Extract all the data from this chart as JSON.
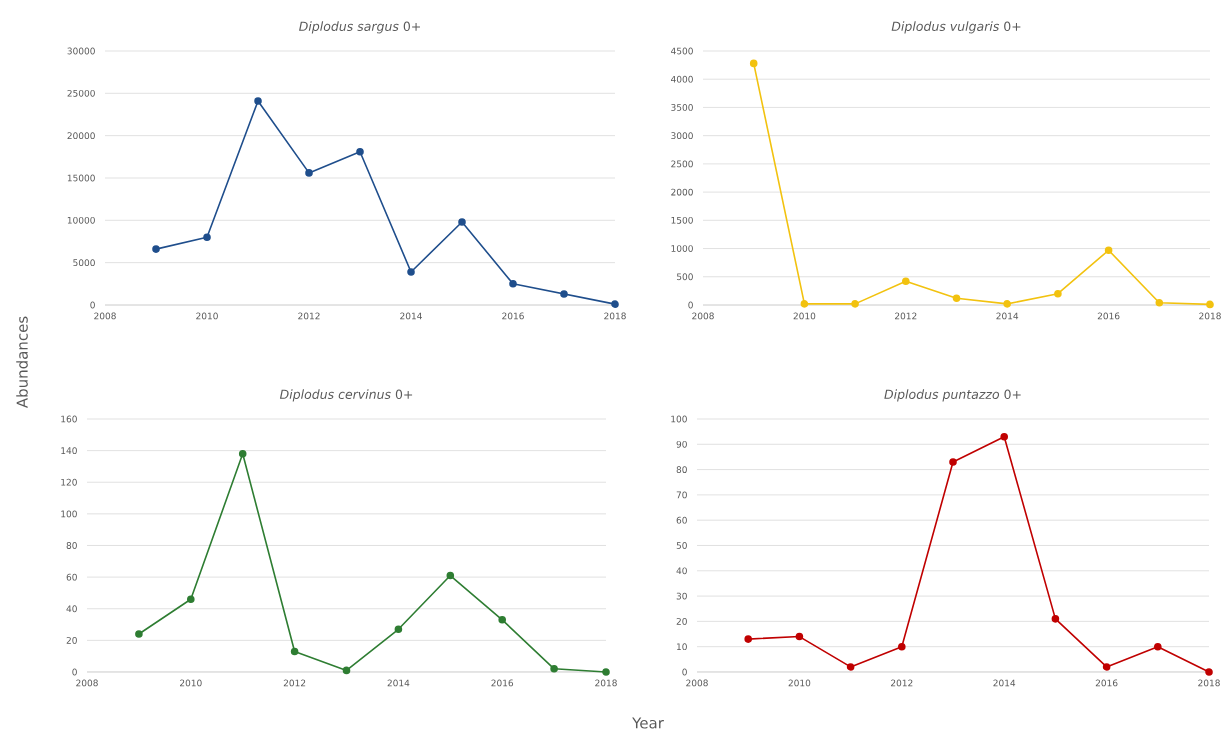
{
  "chart_data": [
    {
      "type": "line",
      "title": "*Diplodus sargus* 0+",
      "x": [
        2009,
        2010,
        2011,
        2012,
        2013,
        2014,
        2015,
        2016,
        2017,
        2018
      ],
      "series": [
        {
          "color": "#1f4e8c",
          "values": [
            6600,
            8000,
            24100,
            15600,
            18100,
            3900,
            9800,
            2500,
            1300,
            100
          ]
        }
      ],
      "xlim": [
        2008,
        2018
      ],
      "xticks": [
        2008,
        2010,
        2012,
        2014,
        2016,
        2018
      ],
      "ylim": [
        0,
        30000
      ],
      "yticks": [
        0,
        5000,
        10000,
        15000,
        20000,
        25000,
        30000
      ],
      "grid": "y",
      "marker": "circle",
      "line_style": "solid"
    },
    {
      "type": "line",
      "title": "*Diplodus vulgaris* 0+",
      "x": [
        2009,
        2010,
        2011,
        2012,
        2013,
        2014,
        2015,
        2016,
        2017,
        2018
      ],
      "series": [
        {
          "color": "#f2c20f",
          "values": [
            4280,
            20,
            20,
            420,
            120,
            20,
            200,
            970,
            40,
            10
          ]
        }
      ],
      "xlim": [
        2008,
        2018
      ],
      "xticks": [
        2008,
        2010,
        2012,
        2014,
        2016,
        2018
      ],
      "ylim": [
        0,
        4500
      ],
      "yticks": [
        0,
        500,
        1000,
        1500,
        2000,
        2500,
        3000,
        3500,
        4000,
        4500
      ],
      "grid": "y",
      "marker": "circle",
      "line_style": "solid"
    },
    {
      "type": "line",
      "title": "*Diplodus cervinus* 0+",
      "ylabel": "Abundances",
      "x": [
        2009,
        2010,
        2011,
        2012,
        2013,
        2014,
        2015,
        2016,
        2017,
        2018
      ],
      "series": [
        {
          "color": "#2e7d32",
          "values": [
            24,
            46,
            138,
            13,
            1,
            27,
            61,
            33,
            2,
            0
          ]
        }
      ],
      "xlim": [
        2008,
        2018
      ],
      "xticks": [
        2008,
        2010,
        2012,
        2014,
        2016,
        2018
      ],
      "ylim": [
        0,
        160
      ],
      "yticks": [
        0,
        20,
        40,
        60,
        80,
        100,
        120,
        140,
        160
      ],
      "grid": "y",
      "marker": "circle",
      "line_style": "solid"
    },
    {
      "type": "line",
      "title": "*Diplodus puntazzo* 0+",
      "xlabel": "Year",
      "x": [
        2009,
        2010,
        2011,
        2012,
        2013,
        2014,
        2015,
        2016,
        2017,
        2018
      ],
      "series": [
        {
          "color": "#c00000",
          "values": [
            13,
            14,
            2,
            10,
            83,
            93,
            21,
            2,
            10,
            0
          ]
        }
      ],
      "xlim": [
        2008,
        2018
      ],
      "xticks": [
        2008,
        2010,
        2012,
        2014,
        2016,
        2018
      ],
      "ylim": [
        0,
        100
      ],
      "yticks": [
        0,
        10,
        20,
        30,
        40,
        50,
        60,
        70,
        80,
        90,
        100
      ],
      "grid": "y",
      "marker": "circle",
      "line_style": "solid"
    }
  ]
}
